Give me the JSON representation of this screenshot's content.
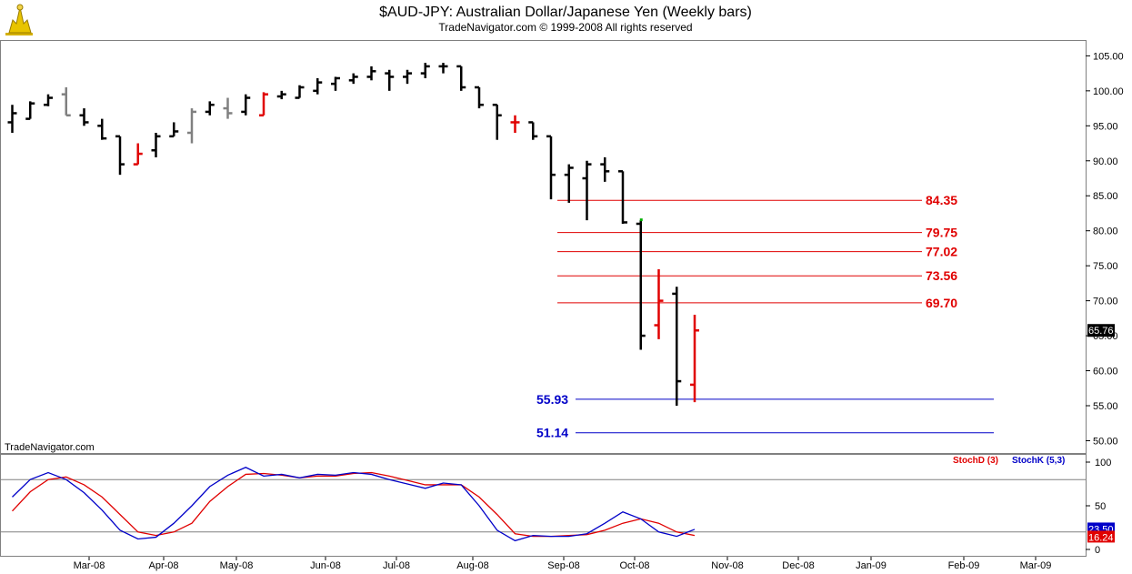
{
  "chart_data": {
    "type": "ohlc",
    "title": "$AUD-JPY:  Australian Dollar/Japanese Yen  (Weekly bars)",
    "subtitle": "TradeNavigator.com © 1999-2008 All rights reserved",
    "watermark": "TradeNavigator.com",
    "ylim": [
      48.5,
      107
    ],
    "y_ticks": [
      "105.00",
      "100.00",
      "95.00",
      "90.00",
      "85.00",
      "80.00",
      "75.00",
      "70.00",
      "65.00",
      "60.00",
      "55.00",
      "50.00"
    ],
    "last_price_label": "65.76",
    "x_labels": [
      "Mar-08",
      "Apr-08",
      "May-08",
      "Jun-08",
      "Jul-08",
      "Aug-08",
      "Sep-08",
      "Oct-08",
      "Nov-08",
      "Dec-08",
      "Jan-09",
      "Feb-09",
      "Mar-09"
    ],
    "colors": {
      "black": "#000000",
      "gray": "#808080",
      "red": "#e00000",
      "green": "#00b000",
      "blue": "#0000c8"
    },
    "bars": [
      {
        "o": 95.5,
        "h": 98.0,
        "l": 94.0,
        "c": 96.8,
        "color": "black"
      },
      {
        "o": 96.0,
        "h": 98.5,
        "l": 96.0,
        "c": 98.2,
        "color": "black"
      },
      {
        "o": 98.0,
        "h": 99.5,
        "l": 97.8,
        "c": 99.0,
        "color": "black"
      },
      {
        "o": 99.5,
        "h": 100.5,
        "l": 96.5,
        "c": 96.5,
        "color": "gray"
      },
      {
        "o": 96.5,
        "h": 97.5,
        "l": 95.0,
        "c": 95.5,
        "color": "black"
      },
      {
        "o": 95.0,
        "h": 96.0,
        "l": 93.0,
        "c": 93.2,
        "color": "black"
      },
      {
        "o": 93.5,
        "h": 93.5,
        "l": 88.0,
        "c": 89.5,
        "color": "black"
      },
      {
        "o": 89.5,
        "h": 92.5,
        "l": 89.5,
        "c": 91.0,
        "color": "red"
      },
      {
        "o": 91.5,
        "h": 94.0,
        "l": 90.5,
        "c": 93.5,
        "color": "black"
      },
      {
        "o": 93.5,
        "h": 95.5,
        "l": 93.5,
        "c": 94.2,
        "color": "black"
      },
      {
        "o": 94.0,
        "h": 97.5,
        "l": 92.5,
        "c": 97.0,
        "color": "gray"
      },
      {
        "o": 97.0,
        "h": 98.5,
        "l": 96.5,
        "c": 98.0,
        "color": "black"
      },
      {
        "o": 97.5,
        "h": 99.0,
        "l": 96.0,
        "c": 96.8,
        "color": "gray"
      },
      {
        "o": 97.0,
        "h": 99.5,
        "l": 96.5,
        "c": 99.0,
        "color": "black"
      },
      {
        "o": 96.5,
        "h": 99.8,
        "l": 96.5,
        "c": 99.5,
        "color": "red"
      },
      {
        "o": 99.2,
        "h": 100.0,
        "l": 98.8,
        "c": 99.5,
        "color": "black"
      },
      {
        "o": 99.0,
        "h": 100.8,
        "l": 99.0,
        "c": 100.5,
        "color": "black"
      },
      {
        "o": 100.0,
        "h": 101.8,
        "l": 99.5,
        "c": 101.2,
        "color": "black"
      },
      {
        "o": 101.0,
        "h": 102.0,
        "l": 100.0,
        "c": 101.8,
        "color": "black"
      },
      {
        "o": 101.5,
        "h": 102.5,
        "l": 101.0,
        "c": 102.0,
        "color": "black"
      },
      {
        "o": 102.0,
        "h": 103.5,
        "l": 101.5,
        "c": 102.8,
        "color": "black"
      },
      {
        "o": 102.5,
        "h": 103.0,
        "l": 100.0,
        "c": 102.0,
        "color": "black"
      },
      {
        "o": 102.0,
        "h": 103.0,
        "l": 101.0,
        "c": 102.5,
        "color": "black"
      },
      {
        "o": 102.5,
        "h": 104.0,
        "l": 101.8,
        "c": 103.5,
        "color": "black"
      },
      {
        "o": 103.5,
        "h": 104.0,
        "l": 102.5,
        "c": 103.5,
        "color": "black"
      },
      {
        "o": 103.5,
        "h": 103.5,
        "l": 100.0,
        "c": 100.5,
        "color": "black"
      },
      {
        "o": 100.5,
        "h": 100.5,
        "l": 97.5,
        "c": 98.0,
        "color": "black"
      },
      {
        "o": 98.0,
        "h": 98.0,
        "l": 93.0,
        "c": 96.5,
        "color": "black"
      },
      {
        "o": 95.5,
        "h": 96.5,
        "l": 94.0,
        "c": 95.5,
        "color": "red"
      },
      {
        "o": 95.5,
        "h": 95.5,
        "l": 93.0,
        "c": 93.5,
        "color": "black"
      },
      {
        "o": 93.5,
        "h": 93.5,
        "l": 84.5,
        "c": 88.0,
        "color": "black"
      },
      {
        "o": 88.0,
        "h": 89.5,
        "l": 84.0,
        "c": 89.0,
        "color": "black"
      },
      {
        "o": 87.5,
        "h": 90.0,
        "l": 81.5,
        "c": 89.5,
        "color": "black"
      },
      {
        "o": 89.5,
        "h": 90.5,
        "l": 87.0,
        "c": 88.5,
        "color": "black"
      },
      {
        "o": 88.5,
        "h": 88.5,
        "l": 81.0,
        "c": 81.2,
        "color": "black"
      },
      {
        "o": 81.0,
        "h": 81.5,
        "l": 63.0,
        "c": 65.0,
        "color": "black",
        "high_dot": "green"
      },
      {
        "o": 66.5,
        "h": 74.5,
        "l": 64.5,
        "c": 70.0,
        "color": "red"
      },
      {
        "o": 71.0,
        "h": 72.0,
        "l": 55.0,
        "c": 58.5,
        "color": "black"
      },
      {
        "o": 58.0,
        "h": 68.0,
        "l": 55.5,
        "c": 65.76,
        "color": "red"
      }
    ],
    "levels": [
      {
        "value": 84.35,
        "label": "84.35",
        "color": "red"
      },
      {
        "value": 79.75,
        "label": "79.75",
        "color": "red"
      },
      {
        "value": 77.02,
        "label": "77.02",
        "color": "red"
      },
      {
        "value": 73.56,
        "label": "73.56",
        "color": "red"
      },
      {
        "value": 69.7,
        "label": "69.70",
        "color": "red"
      },
      {
        "value": 55.93,
        "label": "55.93",
        "color": "blue"
      },
      {
        "value": 51.14,
        "label": "51.14",
        "color": "blue"
      }
    ],
    "stochastic": {
      "ylim": [
        0,
        100
      ],
      "y_ticks": [
        "100",
        "50",
        "0"
      ],
      "ref_lines": [
        80,
        20
      ],
      "legend": [
        {
          "name": "StochD (3)",
          "color": "red"
        },
        {
          "name": "StochK (5,3)",
          "color": "blue"
        }
      ],
      "stochK": [
        60,
        80,
        88,
        80,
        65,
        45,
        22,
        12,
        14,
        30,
        50,
        72,
        85,
        94,
        84,
        86,
        82,
        86,
        85,
        88,
        86,
        80,
        75,
        70,
        76,
        74,
        50,
        22,
        10,
        16,
        15,
        15,
        18,
        30,
        43,
        35,
        20,
        15,
        23
      ],
      "stochD": [
        44,
        66,
        80,
        83,
        74,
        60,
        40,
        20,
        16,
        20,
        30,
        55,
        72,
        86,
        87,
        85,
        82,
        84,
        84,
        87,
        88,
        84,
        79,
        74,
        74,
        74,
        60,
        40,
        18,
        15,
        15,
        16,
        17,
        22,
        30,
        35,
        30,
        20,
        16
      ],
      "stochK_label": "23.50",
      "stochD_label": "16.24"
    }
  }
}
